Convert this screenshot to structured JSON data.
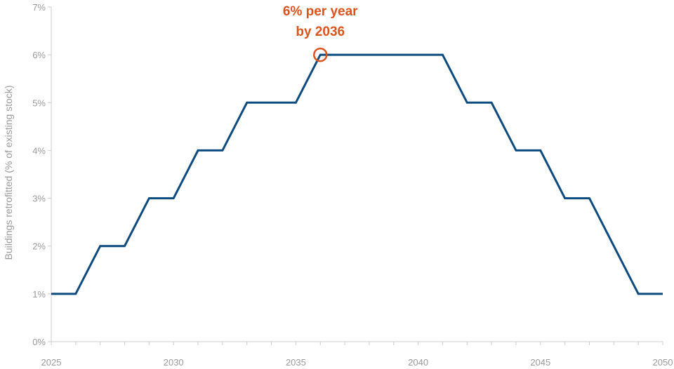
{
  "chart_data": {
    "type": "line",
    "title": "",
    "xlabel": "",
    "ylabel": "Buildings retrofitted (% of existing stock)",
    "xlim": [
      2025,
      2050
    ],
    "ylim": [
      0,
      7
    ],
    "x_ticks": [
      2025,
      2030,
      2035,
      2040,
      2045,
      2050
    ],
    "y_ticks": [
      0,
      1,
      2,
      3,
      4,
      5,
      6,
      7
    ],
    "y_tick_labels": [
      "0%",
      "1%",
      "2%",
      "3%",
      "4%",
      "5%",
      "6%",
      "7%"
    ],
    "grid": false,
    "series": [
      {
        "x": [
          2025,
          2026,
          2027,
          2028,
          2029,
          2030,
          2031,
          2032,
          2033,
          2034,
          2035,
          2036,
          2037,
          2038,
          2039,
          2040,
          2041,
          2042,
          2043,
          2044,
          2045,
          2046,
          2047,
          2048,
          2049,
          2050
        ],
        "values": [
          1,
          1,
          2,
          2,
          3,
          3,
          4,
          4,
          5,
          5,
          5,
          6,
          6,
          6,
          6,
          6,
          6,
          5,
          5,
          4,
          4,
          3,
          3,
          2,
          1,
          1
        ]
      }
    ],
    "annotation": {
      "lines": [
        "6% per year",
        "by 2036"
      ],
      "x": 2036,
      "y": 6
    },
    "colors": {
      "line": "#0d4a7e",
      "annotation": "#d9541e",
      "axis": "#cccccc",
      "tick_text": "#9a9a9a"
    }
  }
}
